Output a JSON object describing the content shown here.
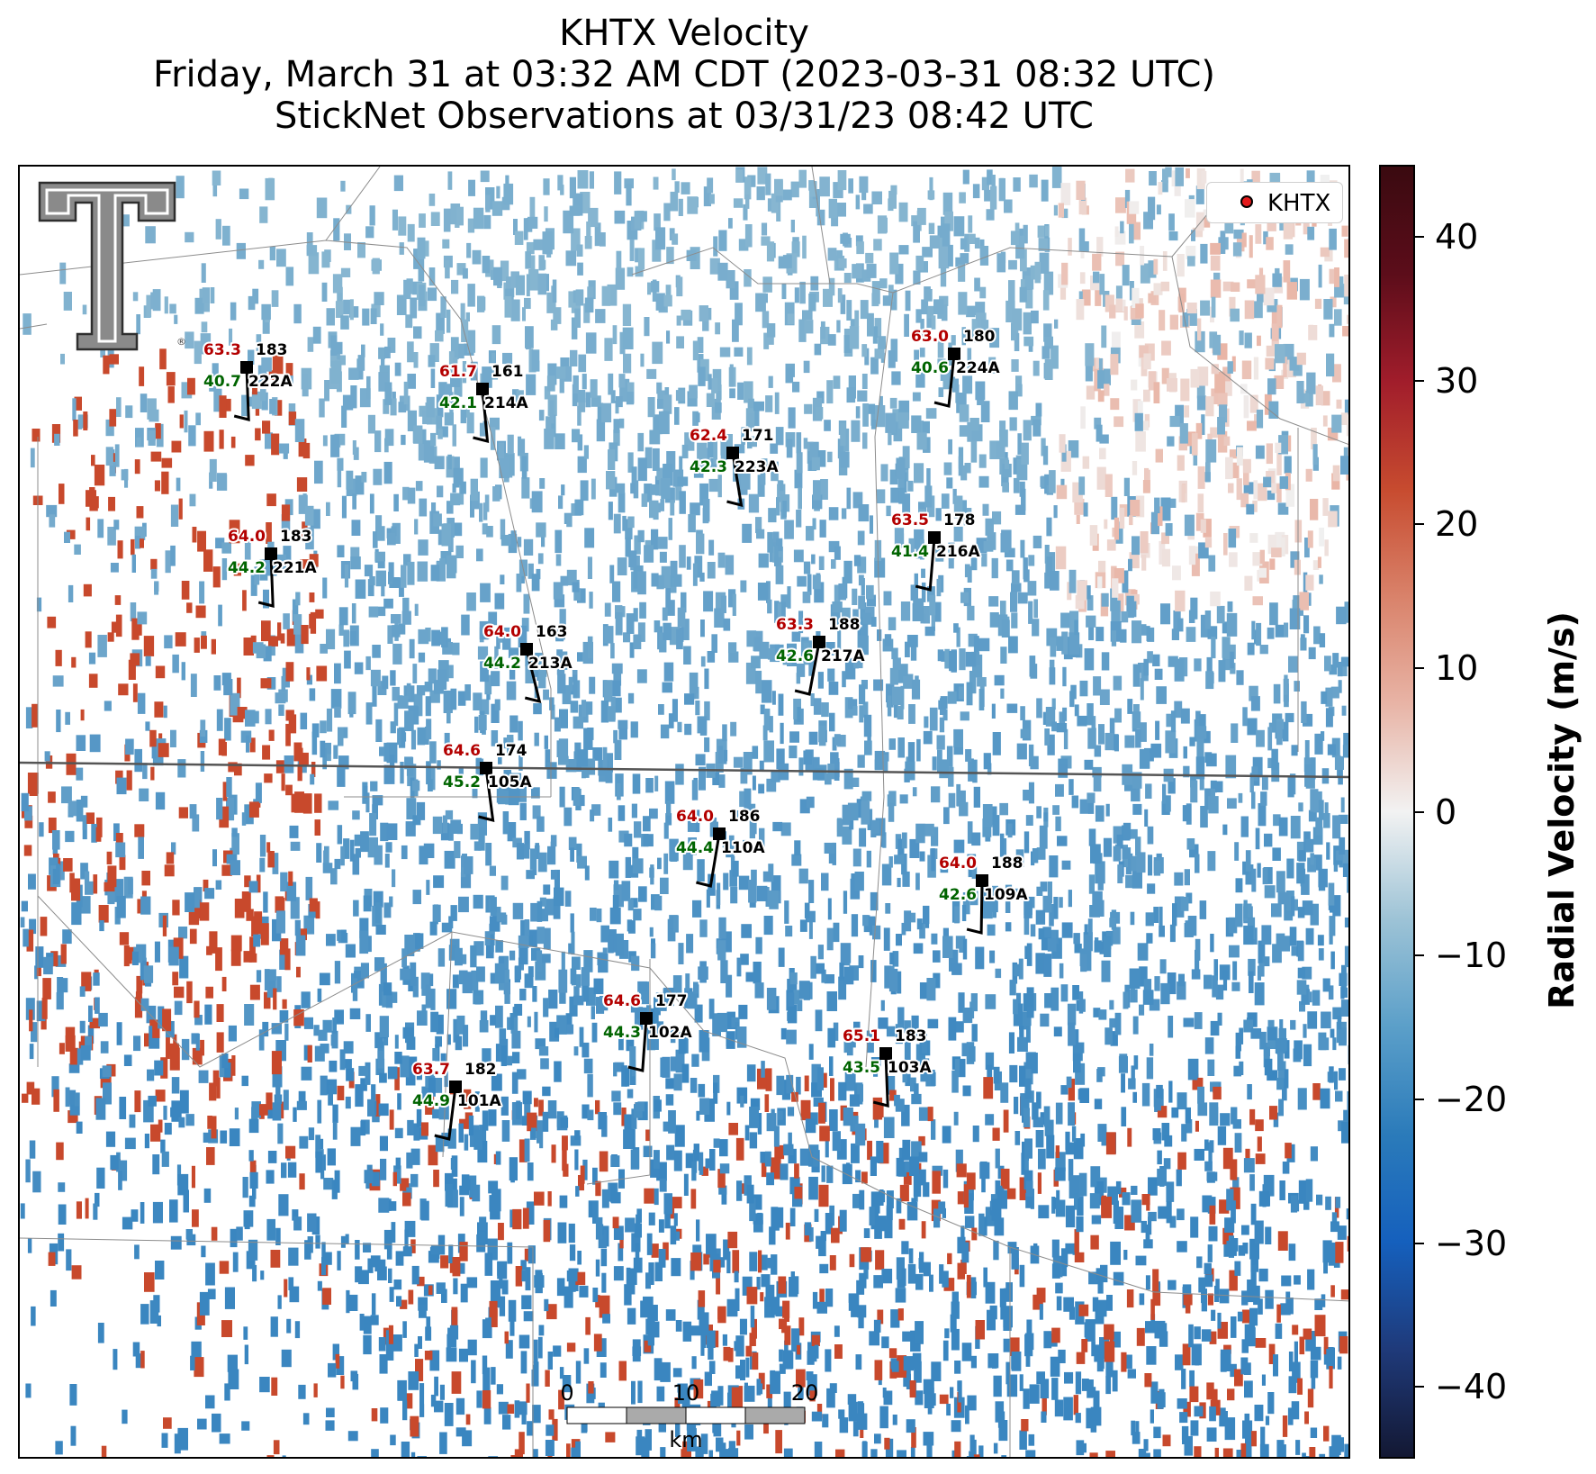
{
  "title": {
    "line1": "KHTX Velocity",
    "line2": "Friday, March 31 at 03:32 AM CDT (2023-03-31 08:32 UTC)",
    "line3": "StickNet Observations at 03/31/23 08:42 UTC"
  },
  "legend": {
    "label": "KHTX",
    "marker_color": "#e31a1c"
  },
  "logo": {
    "name": "texas-tech-double-t-logo",
    "mark": "®"
  },
  "stations": [
    {
      "id": "222A",
      "temp": "63.3",
      "dew": "40.7",
      "dir": "183"
    },
    {
      "id": "214A",
      "temp": "61.7",
      "dew": "42.1",
      "dir": "161"
    },
    {
      "id": "223A",
      "temp": "62.4",
      "dew": "42.3",
      "dir": "171"
    },
    {
      "id": "224A",
      "temp": "63.0",
      "dew": "40.6",
      "dir": "180"
    },
    {
      "id": "221A",
      "temp": "64.0",
      "dew": "44.2",
      "dir": "183"
    },
    {
      "id": "216A",
      "temp": "63.5",
      "dew": "41.4",
      "dir": "178"
    },
    {
      "id": "213A",
      "temp": "64.0",
      "dew": "44.2",
      "dir": "163"
    },
    {
      "id": "217A",
      "temp": "63.3",
      "dew": "42.6",
      "dir": "188"
    },
    {
      "id": "105A",
      "temp": "64.6",
      "dew": "45.2",
      "dir": "174"
    },
    {
      "id": "110A",
      "temp": "64.0",
      "dew": "44.4",
      "dir": "186"
    },
    {
      "id": "109A",
      "temp": "64.0",
      "dew": "42.6",
      "dir": "188"
    },
    {
      "id": "102A",
      "temp": "64.6",
      "dew": "44.3",
      "dir": "177"
    },
    {
      "id": "103A",
      "temp": "65.1",
      "dew": "43.5",
      "dir": "183"
    },
    {
      "id": "101A",
      "temp": "63.7",
      "dew": "44.9",
      "dir": "182"
    }
  ],
  "scalebar": {
    "labels": [
      "0",
      "10",
      "20"
    ],
    "unit": "km"
  },
  "colorbar": {
    "label": "Radial Velocity (m/s)",
    "vmin": -45,
    "vmax": 45,
    "ticks": [
      "40",
      "30",
      "20",
      "10",
      "0",
      "−10",
      "−20",
      "−30",
      "−40"
    ],
    "tick_values": [
      40,
      30,
      20,
      10,
      0,
      -10,
      -20,
      -30,
      -40
    ],
    "colors": [
      "#131833",
      "#1f3a7a",
      "#1560bd",
      "#2b7bba",
      "#5b9fc9",
      "#9dc3d6",
      "#f2f2f2",
      "#e8b4a6",
      "#d9826a",
      "#c74b2f",
      "#a11d2b",
      "#5c0d1a",
      "#3a0a10"
    ]
  },
  "colors": {
    "inbound": "#3a86c0",
    "inbound_light": "#7fb1cf",
    "outbound": "#c8492c",
    "outbound_light": "#e9b5a6"
  }
}
